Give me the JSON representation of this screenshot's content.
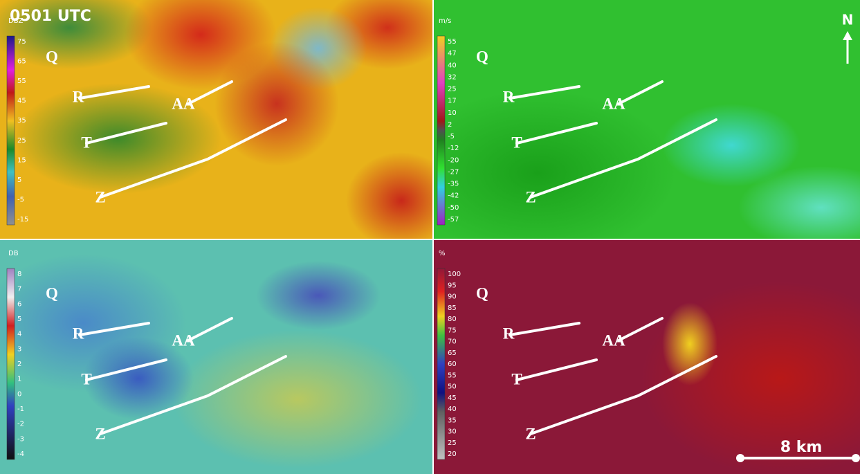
{
  "title": "0501 UTC",
  "north": "N",
  "scale": "8 km",
  "track_labels": [
    "Q",
    "R",
    "AA",
    "T",
    "Z"
  ],
  "panels": [
    {
      "unit": "DBZ",
      "scale_labels": [
        75,
        65,
        55,
        45,
        35,
        25,
        15,
        5,
        -5,
        -15
      ]
    },
    {
      "unit": "m/s",
      "scale_labels": [
        55,
        47,
        40,
        32,
        25,
        17,
        10,
        2,
        -5,
        -12,
        -20,
        -27,
        -35,
        -42,
        -50,
        -57
      ]
    },
    {
      "unit": "DB",
      "scale_labels": [
        8,
        7,
        6,
        5,
        4,
        3,
        2,
        1,
        0,
        -1,
        -2,
        -3,
        -4
      ]
    },
    {
      "unit": "%",
      "scale_labels": [
        100,
        95,
        90,
        85,
        80,
        75,
        70,
        65,
        60,
        55,
        50,
        45,
        40,
        35,
        30,
        25,
        20
      ]
    }
  ]
}
